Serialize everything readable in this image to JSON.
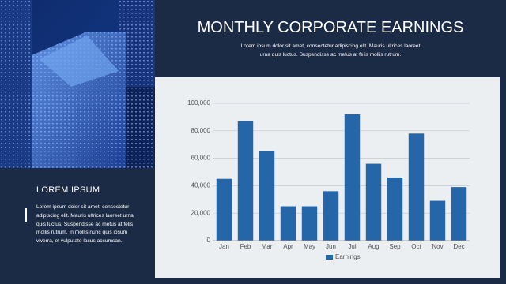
{
  "header": {
    "title": "MONTHLY CORPORATE EARNINGS",
    "subtitle": "Lorem ipsum dolor sit amet, consectetur adipiscing elit. Mauris ultrices laoreet urna quis luctus. Suspendisse ac metus at felis mollis rutrum."
  },
  "sidebar": {
    "heading": "LOREM IPSUM",
    "body": "Lorem ipsum dolor sit amet, consectetur adipiscing elit. Mauris ultrices laoreet urna quis luctus. Suspendisse ac metus at felis mollis rutrum. In mollis nunc quis ipsum viverra, et vulputate lacus accumsan."
  },
  "chart_data": {
    "type": "bar",
    "categories": [
      "Jan",
      "Feb",
      "Mar",
      "Apr",
      "May",
      "Jun",
      "Jul",
      "Aug",
      "Sep",
      "Oct",
      "Nov",
      "Dec"
    ],
    "series": [
      {
        "name": "Earnings",
        "color": "#2566a8",
        "values": [
          45000,
          87000,
          65000,
          25000,
          25000,
          36000,
          92000,
          56000,
          46000,
          78000,
          29000,
          39000
        ]
      }
    ],
    "ylim": [
      0,
      100000
    ],
    "yticks": [
      0,
      {
        "value": 20000,
        "label": "20,000"
      },
      {
        "value": 40000,
        "label": "40,000"
      },
      {
        "value": 60000,
        "label": "60,000"
      },
      {
        "value": 80000,
        "label": "80,000"
      },
      {
        "value": 100000,
        "label": "100,000"
      }
    ],
    "grid": true,
    "legend": "bottom"
  }
}
